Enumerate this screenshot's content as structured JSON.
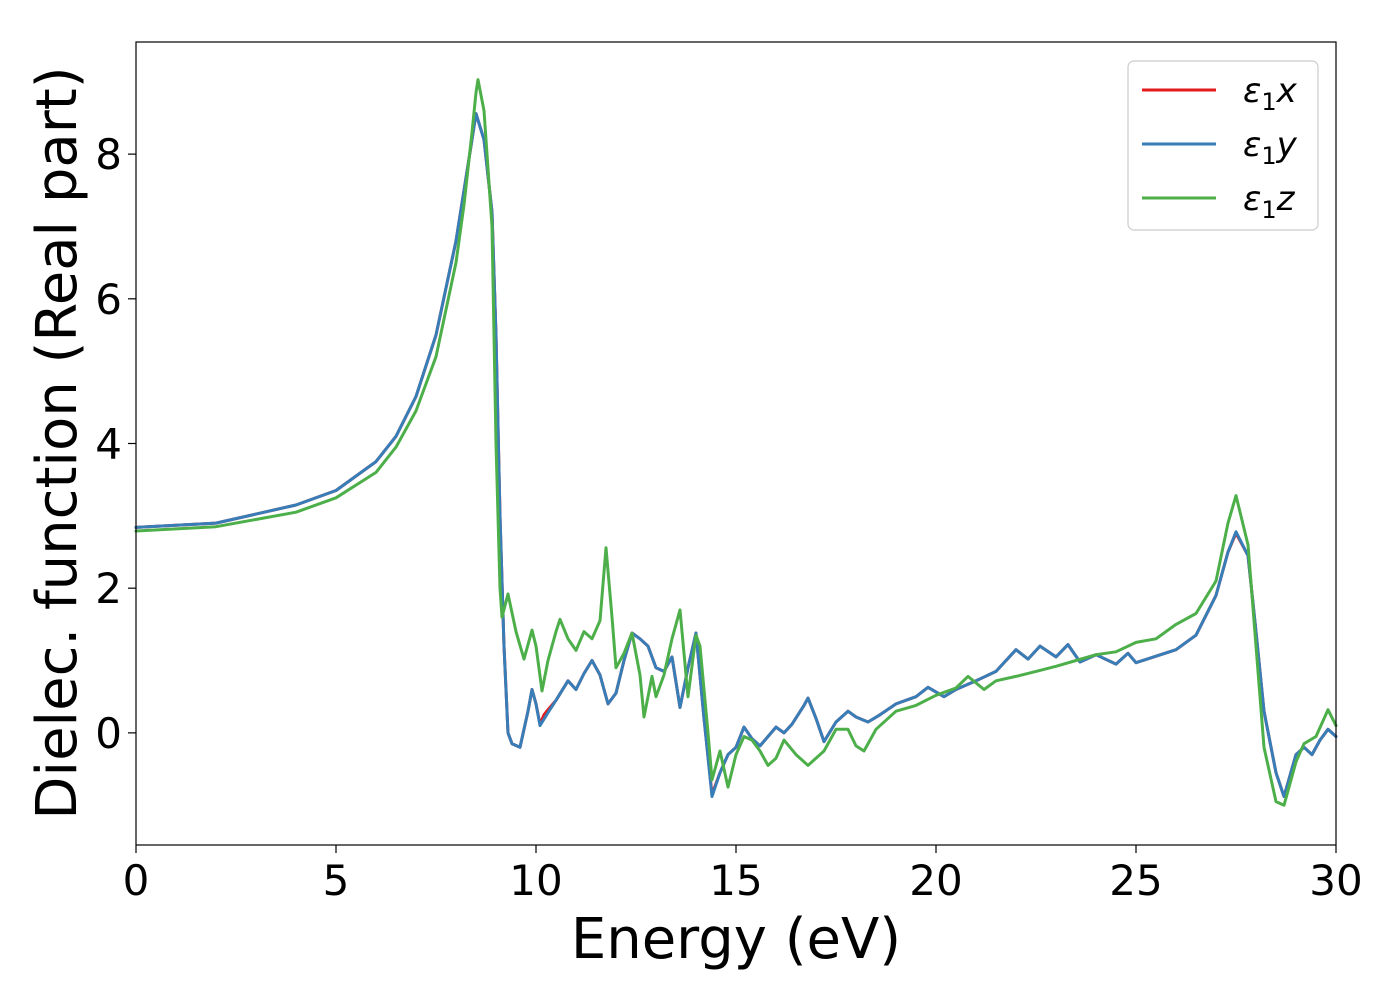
{
  "chart_data": {
    "type": "line",
    "title": "",
    "xlabel": "Energy (eV)",
    "ylabel": "Dielec. function (Real part)",
    "xlim": [
      0,
      30
    ],
    "ylim": [
      -1.55,
      9.55
    ],
    "x_ticks": [
      "0",
      "5",
      "10",
      "15",
      "20",
      "25",
      "30"
    ],
    "y_ticks": [
      "0",
      "2",
      "4",
      "6",
      "8"
    ],
    "grid": false,
    "legend_position": "top-right",
    "legend": [
      {
        "base": "ε",
        "sub": "1",
        "suffix": "x"
      },
      {
        "base": "ε",
        "sub": "1",
        "suffix": "y"
      },
      {
        "base": "ε",
        "sub": "1",
        "suffix": "z"
      }
    ],
    "series": [
      {
        "name": "ε1x",
        "color": "#e41a1c",
        "points": [
          [
            0,
            2.84
          ],
          [
            2,
            2.9
          ],
          [
            4,
            3.15
          ],
          [
            5,
            3.35
          ],
          [
            6,
            3.75
          ],
          [
            6.5,
            4.1
          ],
          [
            7,
            4.65
          ],
          [
            7.5,
            5.5
          ],
          [
            8,
            6.8
          ],
          [
            8.2,
            7.5
          ],
          [
            8.4,
            8.2
          ],
          [
            8.5,
            8.56
          ],
          [
            8.7,
            8.2
          ],
          [
            8.9,
            7.2
          ],
          [
            9.0,
            5.5
          ],
          [
            9.1,
            3.0
          ],
          [
            9.2,
            1.2
          ],
          [
            9.3,
            0.0
          ],
          [
            9.4,
            -0.15
          ],
          [
            9.6,
            -0.2
          ],
          [
            9.8,
            0.3
          ],
          [
            9.9,
            0.6
          ],
          [
            10.0,
            0.4
          ],
          [
            10.1,
            0.12
          ],
          [
            10.2,
            0.25
          ],
          [
            10.3,
            0.32
          ],
          [
            10.5,
            0.45
          ],
          [
            10.8,
            0.72
          ],
          [
            11.0,
            0.6
          ],
          [
            11.2,
            0.82
          ],
          [
            11.4,
            1.0
          ],
          [
            11.6,
            0.8
          ],
          [
            11.8,
            0.4
          ],
          [
            12.0,
            0.55
          ],
          [
            12.2,
            1.0
          ],
          [
            12.4,
            1.38
          ],
          [
            12.6,
            1.3
          ],
          [
            12.8,
            1.2
          ],
          [
            13.0,
            0.9
          ],
          [
            13.2,
            0.85
          ],
          [
            13.4,
            1.05
          ],
          [
            13.6,
            0.35
          ],
          [
            13.8,
            0.9
          ],
          [
            14.0,
            1.38
          ],
          [
            14.2,
            0.2
          ],
          [
            14.4,
            -0.85
          ],
          [
            14.6,
            -0.55
          ],
          [
            14.8,
            -0.3
          ],
          [
            15.0,
            -0.2
          ],
          [
            15.2,
            0.08
          ],
          [
            15.4,
            -0.08
          ],
          [
            15.6,
            -0.18
          ],
          [
            16.0,
            0.08
          ],
          [
            16.2,
            0.0
          ],
          [
            16.4,
            0.12
          ],
          [
            16.7,
            0.38
          ],
          [
            16.8,
            0.48
          ],
          [
            17.0,
            0.2
          ],
          [
            17.2,
            -0.12
          ],
          [
            17.5,
            0.15
          ],
          [
            17.8,
            0.3
          ],
          [
            18.0,
            0.22
          ],
          [
            18.3,
            0.15
          ],
          [
            18.6,
            0.25
          ],
          [
            19.0,
            0.4
          ],
          [
            19.5,
            0.5
          ],
          [
            19.8,
            0.63
          ],
          [
            20.2,
            0.5
          ],
          [
            20.5,
            0.6
          ],
          [
            21.0,
            0.72
          ],
          [
            21.5,
            0.85
          ],
          [
            22.0,
            1.15
          ],
          [
            22.3,
            1.02
          ],
          [
            22.6,
            1.2
          ],
          [
            23.0,
            1.05
          ],
          [
            23.3,
            1.22
          ],
          [
            23.6,
            0.98
          ],
          [
            24.0,
            1.08
          ],
          [
            24.5,
            0.95
          ],
          [
            24.8,
            1.1
          ],
          [
            25.0,
            0.97
          ],
          [
            25.5,
            1.06
          ],
          [
            26.0,
            1.15
          ],
          [
            26.5,
            1.35
          ],
          [
            27.0,
            1.9
          ],
          [
            27.3,
            2.5
          ],
          [
            27.5,
            2.76
          ],
          [
            27.8,
            2.45
          ],
          [
            28.0,
            1.4
          ],
          [
            28.2,
            0.3
          ],
          [
            28.5,
            -0.55
          ],
          [
            28.7,
            -0.88
          ],
          [
            29.0,
            -0.3
          ],
          [
            29.2,
            -0.2
          ],
          [
            29.4,
            -0.3
          ],
          [
            29.6,
            -0.1
          ],
          [
            29.8,
            0.05
          ],
          [
            30.0,
            -0.05
          ]
        ]
      },
      {
        "name": "ε1y",
        "color": "#377eb8",
        "points": [
          [
            0,
            2.84
          ],
          [
            2,
            2.9
          ],
          [
            4,
            3.15
          ],
          [
            5,
            3.35
          ],
          [
            6,
            3.75
          ],
          [
            6.5,
            4.1
          ],
          [
            7,
            4.65
          ],
          [
            7.5,
            5.5
          ],
          [
            8,
            6.8
          ],
          [
            8.2,
            7.5
          ],
          [
            8.4,
            8.2
          ],
          [
            8.5,
            8.56
          ],
          [
            8.7,
            8.2
          ],
          [
            8.9,
            7.2
          ],
          [
            9.0,
            5.5
          ],
          [
            9.1,
            3.0
          ],
          [
            9.2,
            1.2
          ],
          [
            9.3,
            0.0
          ],
          [
            9.4,
            -0.15
          ],
          [
            9.6,
            -0.2
          ],
          [
            9.8,
            0.3
          ],
          [
            9.9,
            0.6
          ],
          [
            10.0,
            0.4
          ],
          [
            10.1,
            0.1
          ],
          [
            10.3,
            0.28
          ],
          [
            10.5,
            0.45
          ],
          [
            10.8,
            0.72
          ],
          [
            11.0,
            0.6
          ],
          [
            11.2,
            0.82
          ],
          [
            11.4,
            1.0
          ],
          [
            11.6,
            0.8
          ],
          [
            11.8,
            0.4
          ],
          [
            12.0,
            0.55
          ],
          [
            12.2,
            1.0
          ],
          [
            12.4,
            1.38
          ],
          [
            12.6,
            1.3
          ],
          [
            12.8,
            1.2
          ],
          [
            13.0,
            0.9
          ],
          [
            13.2,
            0.85
          ],
          [
            13.4,
            1.05
          ],
          [
            13.6,
            0.35
          ],
          [
            13.8,
            0.9
          ],
          [
            14.0,
            1.38
          ],
          [
            14.2,
            0.2
          ],
          [
            14.4,
            -0.88
          ],
          [
            14.6,
            -0.55
          ],
          [
            14.8,
            -0.3
          ],
          [
            15.0,
            -0.2
          ],
          [
            15.2,
            0.08
          ],
          [
            15.4,
            -0.08
          ],
          [
            15.6,
            -0.18
          ],
          [
            16.0,
            0.08
          ],
          [
            16.2,
            0.0
          ],
          [
            16.4,
            0.12
          ],
          [
            16.7,
            0.38
          ],
          [
            16.8,
            0.48
          ],
          [
            17.0,
            0.2
          ],
          [
            17.2,
            -0.12
          ],
          [
            17.5,
            0.15
          ],
          [
            17.8,
            0.3
          ],
          [
            18.0,
            0.22
          ],
          [
            18.3,
            0.15
          ],
          [
            18.6,
            0.25
          ],
          [
            19.0,
            0.4
          ],
          [
            19.5,
            0.5
          ],
          [
            19.8,
            0.63
          ],
          [
            20.2,
            0.5
          ],
          [
            20.5,
            0.6
          ],
          [
            21.0,
            0.72
          ],
          [
            21.5,
            0.85
          ],
          [
            22.0,
            1.15
          ],
          [
            22.3,
            1.02
          ],
          [
            22.6,
            1.2
          ],
          [
            23.0,
            1.05
          ],
          [
            23.3,
            1.22
          ],
          [
            23.6,
            0.98
          ],
          [
            24.0,
            1.08
          ],
          [
            24.5,
            0.95
          ],
          [
            24.8,
            1.1
          ],
          [
            25.0,
            0.97
          ],
          [
            25.5,
            1.06
          ],
          [
            26.0,
            1.15
          ],
          [
            26.5,
            1.35
          ],
          [
            27.0,
            1.9
          ],
          [
            27.3,
            2.5
          ],
          [
            27.5,
            2.78
          ],
          [
            27.8,
            2.45
          ],
          [
            28.0,
            1.4
          ],
          [
            28.2,
            0.3
          ],
          [
            28.5,
            -0.55
          ],
          [
            28.7,
            -0.88
          ],
          [
            29.0,
            -0.3
          ],
          [
            29.2,
            -0.2
          ],
          [
            29.4,
            -0.3
          ],
          [
            29.6,
            -0.1
          ],
          [
            29.8,
            0.05
          ],
          [
            30.0,
            -0.05
          ]
        ]
      },
      {
        "name": "ε1z",
        "color": "#4daf4a",
        "points": [
          [
            0,
            2.79
          ],
          [
            2,
            2.85
          ],
          [
            4,
            3.05
          ],
          [
            5,
            3.25
          ],
          [
            6,
            3.6
          ],
          [
            6.5,
            3.95
          ],
          [
            7,
            4.45
          ],
          [
            7.5,
            5.2
          ],
          [
            8,
            6.5
          ],
          [
            8.2,
            7.3
          ],
          [
            8.4,
            8.3
          ],
          [
            8.5,
            8.85
          ],
          [
            8.55,
            9.03
          ],
          [
            8.7,
            8.6
          ],
          [
            8.9,
            7.0
          ],
          [
            9.0,
            4.0
          ],
          [
            9.1,
            2.0
          ],
          [
            9.15,
            1.6
          ],
          [
            9.3,
            1.92
          ],
          [
            9.5,
            1.4
          ],
          [
            9.7,
            1.02
          ],
          [
            9.9,
            1.42
          ],
          [
            10.0,
            1.2
          ],
          [
            10.15,
            0.58
          ],
          [
            10.3,
            1.0
          ],
          [
            10.5,
            1.4
          ],
          [
            10.6,
            1.57
          ],
          [
            10.8,
            1.3
          ],
          [
            11.0,
            1.14
          ],
          [
            11.2,
            1.4
          ],
          [
            11.4,
            1.3
          ],
          [
            11.6,
            1.55
          ],
          [
            11.75,
            2.56
          ],
          [
            11.9,
            1.6
          ],
          [
            12.0,
            0.9
          ],
          [
            12.2,
            1.1
          ],
          [
            12.4,
            1.38
          ],
          [
            12.6,
            0.8
          ],
          [
            12.7,
            0.22
          ],
          [
            12.9,
            0.78
          ],
          [
            13.0,
            0.5
          ],
          [
            13.2,
            0.8
          ],
          [
            13.4,
            1.3
          ],
          [
            13.6,
            1.7
          ],
          [
            13.8,
            0.5
          ],
          [
            14.0,
            1.35
          ],
          [
            14.1,
            1.2
          ],
          [
            14.3,
            0.0
          ],
          [
            14.4,
            -0.65
          ],
          [
            14.6,
            -0.25
          ],
          [
            14.8,
            -0.75
          ],
          [
            15.0,
            -0.3
          ],
          [
            15.2,
            -0.05
          ],
          [
            15.4,
            -0.1
          ],
          [
            15.6,
            -0.25
          ],
          [
            15.8,
            -0.45
          ],
          [
            16.0,
            -0.35
          ],
          [
            16.2,
            -0.1
          ],
          [
            16.5,
            -0.3
          ],
          [
            16.8,
            -0.45
          ],
          [
            17.2,
            -0.25
          ],
          [
            17.5,
            0.05
          ],
          [
            17.8,
            0.05
          ],
          [
            18.0,
            -0.18
          ],
          [
            18.2,
            -0.25
          ],
          [
            18.5,
            0.05
          ],
          [
            19.0,
            0.3
          ],
          [
            19.5,
            0.38
          ],
          [
            20.0,
            0.52
          ],
          [
            20.5,
            0.62
          ],
          [
            20.8,
            0.78
          ],
          [
            21.2,
            0.6
          ],
          [
            21.5,
            0.72
          ],
          [
            22.0,
            0.78
          ],
          [
            22.5,
            0.85
          ],
          [
            23.0,
            0.92
          ],
          [
            23.5,
            1.0
          ],
          [
            24.0,
            1.08
          ],
          [
            24.5,
            1.12
          ],
          [
            25.0,
            1.25
          ],
          [
            25.5,
            1.3
          ],
          [
            26.0,
            1.5
          ],
          [
            26.5,
            1.65
          ],
          [
            27.0,
            2.1
          ],
          [
            27.3,
            2.9
          ],
          [
            27.5,
            3.28
          ],
          [
            27.8,
            2.6
          ],
          [
            28.0,
            1.2
          ],
          [
            28.2,
            -0.2
          ],
          [
            28.5,
            -0.95
          ],
          [
            28.7,
            -1.0
          ],
          [
            29.0,
            -0.4
          ],
          [
            29.2,
            -0.15
          ],
          [
            29.5,
            -0.05
          ],
          [
            29.8,
            0.32
          ],
          [
            30.0,
            0.1
          ]
        ]
      }
    ]
  }
}
